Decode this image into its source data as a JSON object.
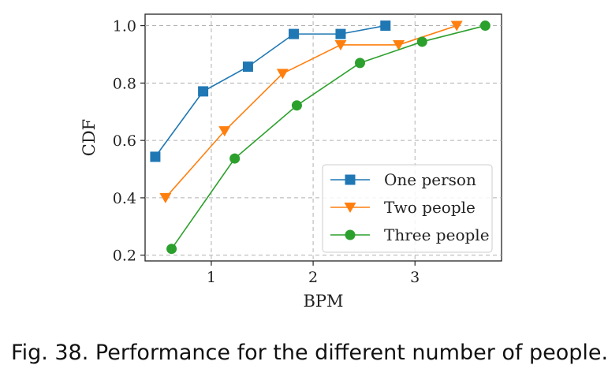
{
  "caption": "Fig. 38.  Performance for the different number of people.",
  "chart_data": {
    "type": "line",
    "xlabel": "BPM",
    "ylabel": "CDF",
    "xlim": [
      0.35,
      3.85
    ],
    "ylim": [
      0.18,
      1.04
    ],
    "xticks": [
      1,
      2,
      3
    ],
    "yticks": [
      0.2,
      0.4,
      0.6,
      0.8,
      1.0
    ],
    "xtick_labels": [
      "1",
      "2",
      "3"
    ],
    "ytick_labels": [
      "0.2",
      "0.4",
      "0.6",
      "0.8",
      "1.0"
    ],
    "grid": true,
    "legend_position": "lower-right",
    "series": [
      {
        "name": "One person",
        "color": "#1f77b4",
        "marker": "square",
        "x": [
          0.45,
          0.92,
          1.36,
          1.81,
          2.27,
          2.71
        ],
        "y": [
          0.543,
          0.771,
          0.857,
          0.971,
          0.971,
          1.0
        ]
      },
      {
        "name": "Two people",
        "color": "#ff7f0e",
        "marker": "triangle-down",
        "x": [
          0.55,
          1.13,
          1.7,
          2.27,
          2.84,
          3.41
        ],
        "y": [
          0.4,
          0.633,
          0.833,
          0.933,
          0.933,
          1.0
        ]
      },
      {
        "name": "Three people",
        "color": "#2ca02c",
        "marker": "circle",
        "x": [
          0.61,
          1.23,
          1.84,
          2.46,
          3.07,
          3.69
        ],
        "y": [
          0.222,
          0.537,
          0.722,
          0.87,
          0.944,
          1.0
        ]
      }
    ]
  }
}
